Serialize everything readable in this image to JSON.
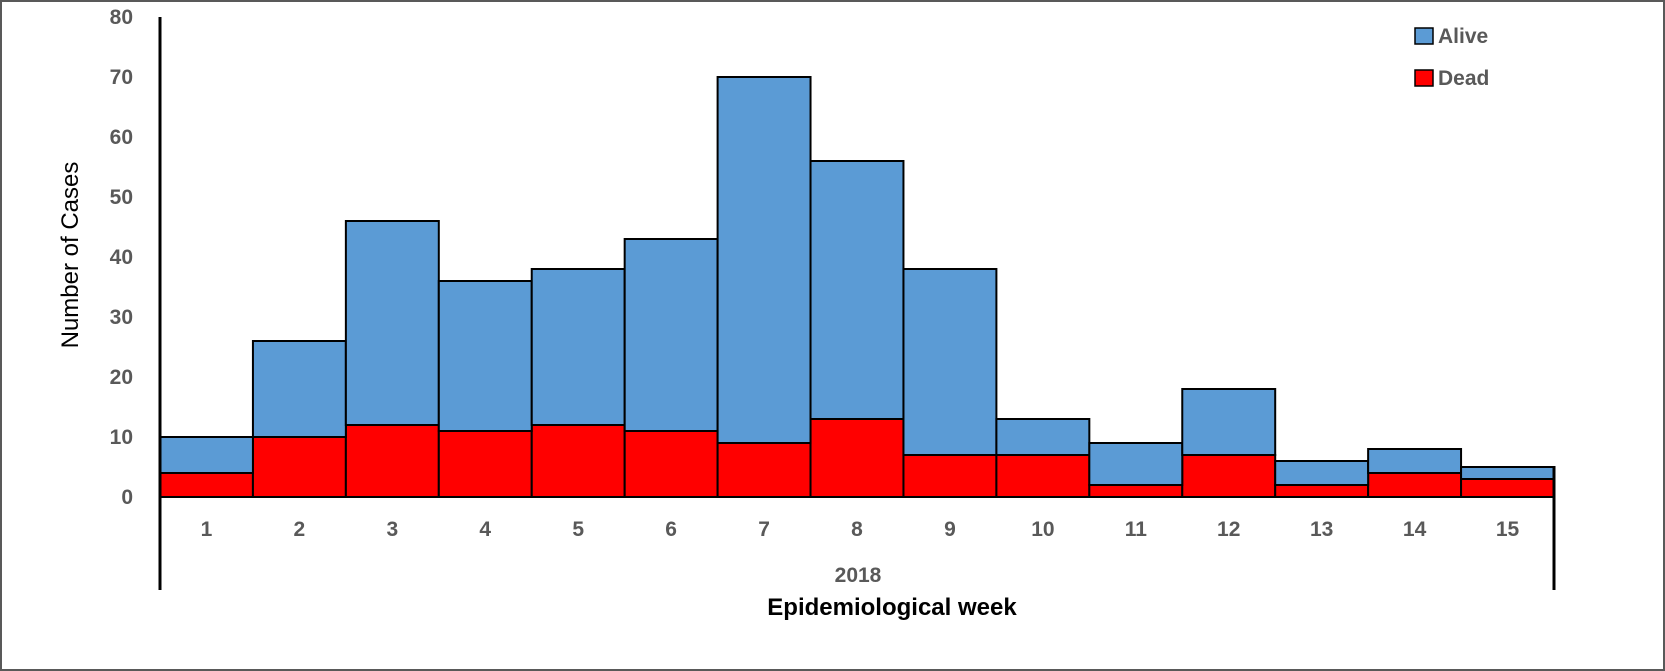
{
  "chart_data": {
    "type": "bar",
    "stacked": true,
    "categories": [
      "1",
      "2",
      "3",
      "4",
      "5",
      "6",
      "7",
      "8",
      "9",
      "10",
      "11",
      "12",
      "13",
      "14",
      "15"
    ],
    "series": [
      {
        "name": "Dead",
        "color": "#ff0000",
        "values": [
          4,
          10,
          12,
          11,
          12,
          11,
          9,
          13,
          7,
          7,
          2,
          7,
          2,
          4,
          3
        ]
      },
      {
        "name": "Alive",
        "color": "#5b9bd5",
        "values": [
          6,
          16,
          34,
          25,
          26,
          32,
          61,
          43,
          31,
          6,
          7,
          11,
          4,
          4,
          2
        ]
      }
    ],
    "x_group_label": "2018",
    "xlabel": "Epidemiological week",
    "ylabel": "Number of Cases",
    "ylim": [
      0,
      80
    ],
    "yticks": [
      0,
      10,
      20,
      30,
      40,
      50,
      60,
      70,
      80
    ],
    "grid": false,
    "legend": {
      "placement": "top-right",
      "entries": [
        {
          "name": "Alive",
          "color": "#5b9bd5"
        },
        {
          "name": "Dead",
          "color": "#ff0000"
        }
      ]
    }
  }
}
